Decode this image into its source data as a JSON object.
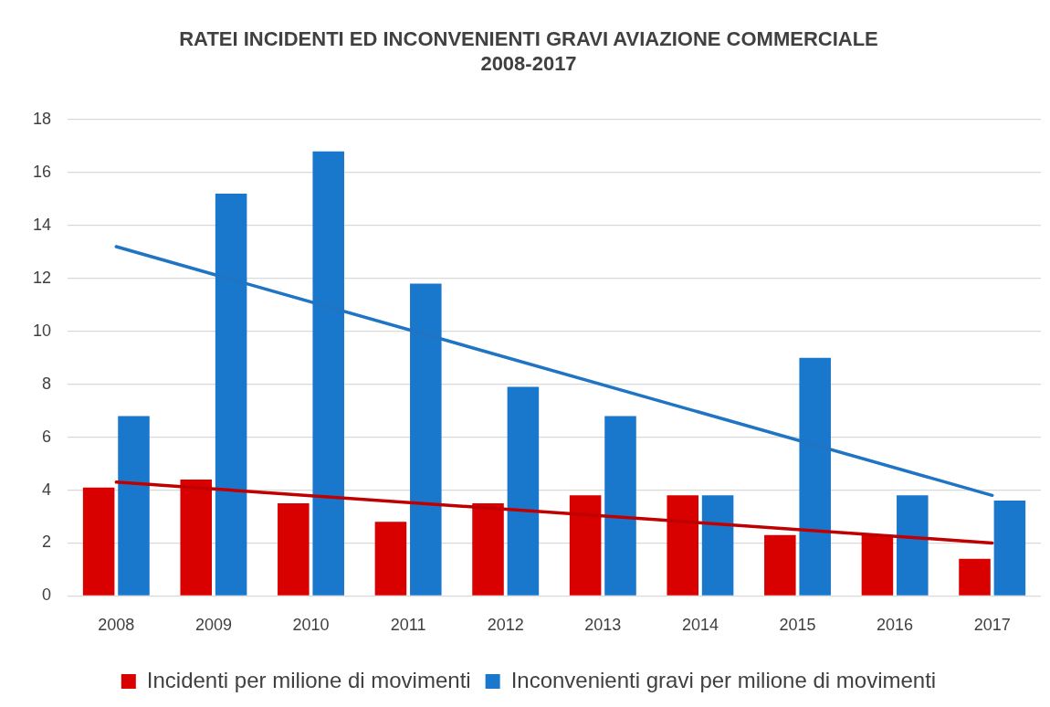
{
  "chart_data": {
    "type": "bar",
    "title": "RATEI INCIDENTI ED INCONVENIENTI GRAVI AVIAZIONE COMMERCIALE 2008-2017",
    "categories": [
      "2008",
      "2009",
      "2010",
      "2011",
      "2012",
      "2013",
      "2014",
      "2015",
      "2016",
      "2017"
    ],
    "series": [
      {
        "name": "Incidenti per milione di movimenti",
        "color": "#d90000",
        "values": [
          4.1,
          4.4,
          3.5,
          2.8,
          3.5,
          3.8,
          3.8,
          2.3,
          2.3,
          1.4
        ]
      },
      {
        "name": "Inconvenienti gravi per milione di movimenti",
        "color": "#1a78cc",
        "values": [
          6.8,
          15.2,
          16.8,
          11.8,
          7.9,
          6.8,
          3.8,
          9.0,
          3.8,
          3.6
        ]
      },
      {
        "type": "line",
        "color": "#c00000",
        "values": [
          4.3,
          null,
          null,
          null,
          null,
          null,
          null,
          null,
          null,
          2.0
        ]
      },
      {
        "type": "line",
        "color": "#1f74c4",
        "values": [
          13.2,
          null,
          null,
          null,
          null,
          null,
          null,
          null,
          null,
          3.8
        ]
      }
    ],
    "ylim": [
      0,
      18
    ],
    "yticks": [
      0,
      2,
      4,
      6,
      8,
      10,
      12,
      14,
      16,
      18
    ],
    "grid": "y",
    "legend": "bottom",
    "marker": "none"
  }
}
